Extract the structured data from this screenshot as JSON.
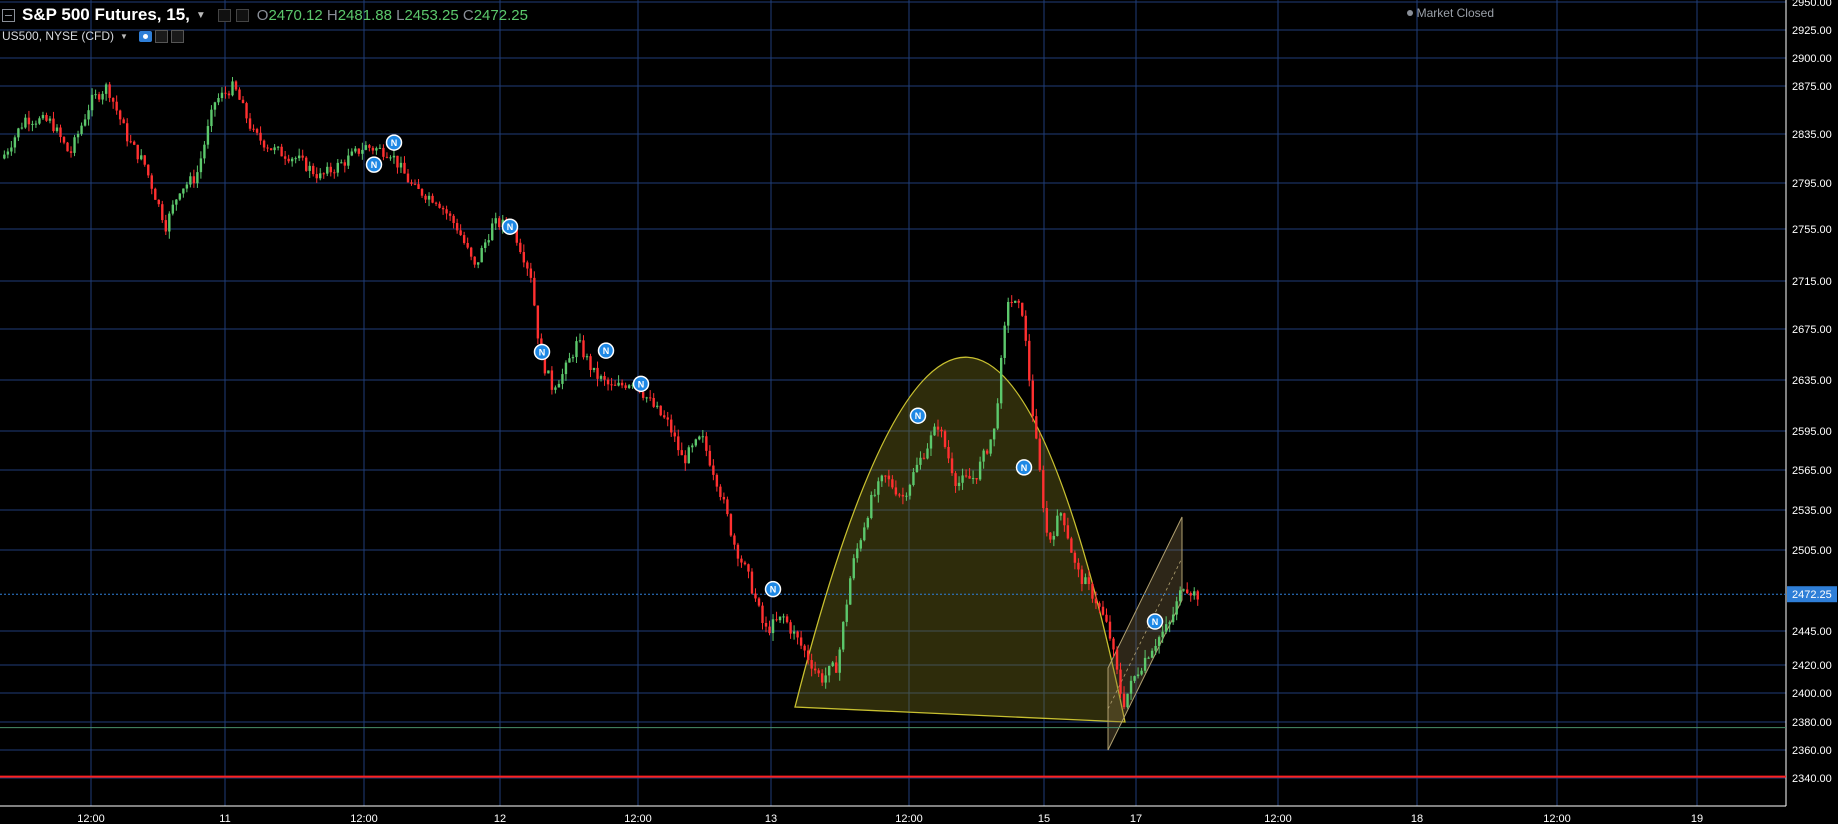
{
  "header": {
    "symbol": "S&P 500 Futures, 15,",
    "open_label": "O",
    "open": "2470.12",
    "high_label": "H",
    "high": "2481.88",
    "low_label": "L",
    "low": "2453.25",
    "close_label": "C",
    "close": "2472.25",
    "sub_symbol": "US500, NYSE (CFD)",
    "market_status": "Market Closed"
  },
  "colors": {
    "up": "#5cc86c",
    "down": "#ff3030",
    "grid": "#1f3d78",
    "axis_text": "#ffffff",
    "price_tag": "#2f7fd8",
    "news": "#1e88e5"
  },
  "chart_data": {
    "type": "candlestick",
    "interval": "15",
    "ylim": [
      2330,
      2950
    ],
    "y_ticks": [
      2340,
      2360,
      2380,
      2400,
      2420,
      2445,
      2472.25,
      2505,
      2535,
      2565,
      2595,
      2635,
      2675,
      2715,
      2755,
      2795,
      2835,
      2875,
      2900,
      2925,
      2950
    ],
    "y_tick_labels": [
      "2340.00",
      "2360.00",
      "2380.00",
      "2400.00",
      "2420.00",
      "2445.00",
      "2472.25",
      "2505.00",
      "2535.00",
      "2565.00",
      "2595.00",
      "2635.00",
      "2675.00",
      "2715.00",
      "2755.00",
      "2795.00",
      "2835.00",
      "2875.00",
      "2900.00",
      "2925.00",
      "2950.00"
    ],
    "x_ticks": [
      "12:00",
      "11",
      "12:00",
      "12",
      "12:00",
      "13",
      "12:00",
      "15",
      "17",
      "12:00",
      "18",
      "12:00",
      "19"
    ],
    "last_price": 2472.25,
    "price_path": [
      [
        0,
        2815
      ],
      [
        20,
        2848
      ],
      [
        42,
        2845
      ],
      [
        58,
        2818
      ],
      [
        76,
        2862
      ],
      [
        90,
        2875
      ],
      [
        108,
        2830
      ],
      [
        122,
        2810
      ],
      [
        140,
        2758
      ],
      [
        152,
        2790
      ],
      [
        166,
        2800
      ],
      [
        182,
        2862
      ],
      [
        198,
        2875
      ],
      [
        215,
        2835
      ],
      [
        232,
        2822
      ],
      [
        252,
        2815
      ],
      [
        272,
        2800
      ],
      [
        292,
        2812
      ],
      [
        310,
        2825
      ],
      [
        332,
        2820
      ],
      [
        352,
        2790
      ],
      [
        372,
        2780
      ],
      [
        390,
        2755
      ],
      [
        404,
        2725
      ],
      [
        420,
        2760
      ],
      [
        436,
        2758
      ],
      [
        452,
        2720
      ],
      [
        460,
        2655
      ],
      [
        470,
        2630
      ],
      [
        480,
        2640
      ],
      [
        492,
        2665
      ],
      [
        506,
        2640
      ],
      [
        522,
        2628
      ],
      [
        540,
        2635
      ],
      [
        556,
        2615
      ],
      [
        570,
        2600
      ],
      [
        582,
        2572
      ],
      [
        598,
        2590
      ],
      [
        612,
        2555
      ],
      [
        626,
        2510
      ],
      [
        640,
        2480
      ],
      [
        652,
        2445
      ],
      [
        668,
        2455
      ],
      [
        686,
        2430
      ],
      [
        700,
        2410
      ],
      [
        714,
        2420
      ],
      [
        726,
        2490
      ],
      [
        742,
        2540
      ],
      [
        754,
        2560
      ],
      [
        770,
        2545
      ],
      [
        786,
        2575
      ],
      [
        800,
        2600
      ],
      [
        816,
        2555
      ],
      [
        832,
        2560
      ],
      [
        848,
        2595
      ],
      [
        860,
        2700
      ],
      [
        872,
        2690
      ],
      [
        882,
        2600
      ],
      [
        894,
        2510
      ],
      [
        906,
        2535
      ],
      [
        918,
        2490
      ],
      [
        934,
        2470
      ],
      [
        946,
        2445
      ],
      [
        958,
        2392
      ],
      [
        970,
        2415
      ],
      [
        984,
        2435
      ],
      [
        998,
        2450
      ],
      [
        1010,
        2480
      ],
      [
        1020,
        2472
      ]
    ],
    "news_markers": [
      {
        "x": 374,
        "price": 2810
      },
      {
        "x": 394,
        "price": 2828
      },
      {
        "x": 510,
        "price": 2757
      },
      {
        "x": 542,
        "price": 2657
      },
      {
        "x": 606,
        "price": 2658
      },
      {
        "x": 641,
        "price": 2632
      },
      {
        "x": 773,
        "price": 2476
      },
      {
        "x": 918,
        "price": 2607
      },
      {
        "x": 1024,
        "price": 2567
      },
      {
        "x": 1155,
        "price": 2452
      }
    ],
    "horizontal_lines": [
      {
        "price": 2472.25,
        "style": "dotted",
        "color": "#2f7fd8"
      },
      {
        "price": 2376,
        "style": "solid",
        "color": "#4a8f6a"
      },
      {
        "price": 2341,
        "style": "solid",
        "color": "#ff2020"
      }
    ],
    "drawings": [
      {
        "type": "parabola",
        "color": "#c8c030"
      },
      {
        "type": "channel",
        "color": "#b0a070"
      }
    ]
  }
}
